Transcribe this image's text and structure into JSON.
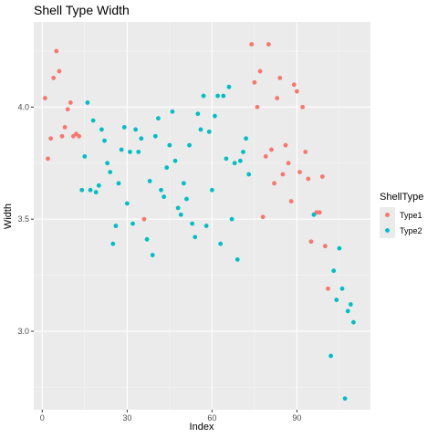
{
  "chart_data": {
    "type": "scatter",
    "title": "Shell Type Width",
    "xlabel": "Index",
    "ylabel": "Width",
    "xlim": [
      -3,
      116
    ],
    "ylim": [
      2.65,
      4.38
    ],
    "x_ticks": [
      0,
      30,
      60,
      90
    ],
    "y_ticks": [
      3.0,
      3.5,
      4.0
    ],
    "x_tick_labels": [
      "0",
      "30",
      "60",
      "90"
    ],
    "y_tick_labels": [
      "3.0",
      "3.5",
      "4.0"
    ],
    "grid": true,
    "legend_title": "ShellType",
    "legend_position": "right",
    "series": [
      {
        "name": "Type1",
        "color": "#f8766d",
        "points": [
          [
            1,
            4.04
          ],
          [
            2,
            3.77
          ],
          [
            3,
            3.86
          ],
          [
            4,
            4.13
          ],
          [
            5,
            4.25
          ],
          [
            6,
            4.16
          ],
          [
            7,
            3.87
          ],
          [
            8,
            3.91
          ],
          [
            9,
            3.99
          ],
          [
            10,
            4.02
          ],
          [
            11,
            3.87
          ],
          [
            12,
            3.88
          ],
          [
            13,
            3.87
          ],
          [
            36,
            3.5
          ],
          [
            74,
            4.28
          ],
          [
            75,
            4.11
          ],
          [
            76,
            4.0
          ],
          [
            77,
            4.16
          ],
          [
            78,
            3.51
          ],
          [
            79,
            3.78
          ],
          [
            80,
            4.28
          ],
          [
            81,
            3.81
          ],
          [
            82,
            3.66
          ],
          [
            83,
            4.04
          ],
          [
            84,
            4.13
          ],
          [
            85,
            3.7
          ],
          [
            86,
            3.83
          ],
          [
            87,
            3.75
          ],
          [
            88,
            3.58
          ],
          [
            89,
            4.1
          ],
          [
            90,
            4.07
          ],
          [
            91,
            3.71
          ],
          [
            92,
            4.0
          ],
          [
            93,
            3.8
          ],
          [
            94,
            3.68
          ],
          [
            95,
            3.4
          ],
          [
            96,
            3.52
          ],
          [
            97,
            3.53
          ],
          [
            98,
            3.53
          ],
          [
            99,
            3.69
          ],
          [
            100,
            3.38
          ],
          [
            101,
            3.19
          ]
        ]
      },
      {
        "name": "Type2",
        "color": "#00bfc4",
        "points": [
          [
            14,
            3.63
          ],
          [
            15,
            3.78
          ],
          [
            16,
            4.02
          ],
          [
            17,
            3.63
          ],
          [
            18,
            3.94
          ],
          [
            19,
            3.62
          ],
          [
            20,
            3.65
          ],
          [
            21,
            3.9
          ],
          [
            22,
            3.85
          ],
          [
            23,
            3.75
          ],
          [
            24,
            3.71
          ],
          [
            25,
            3.39
          ],
          [
            26,
            3.47
          ],
          [
            27,
            3.66
          ],
          [
            28,
            3.81
          ],
          [
            29,
            3.91
          ],
          [
            30,
            3.57
          ],
          [
            31,
            3.8
          ],
          [
            32,
            3.48
          ],
          [
            33,
            3.9
          ],
          [
            34,
            3.8
          ],
          [
            35,
            3.86
          ],
          [
            37,
            3.41
          ],
          [
            38,
            3.67
          ],
          [
            39,
            3.34
          ],
          [
            40,
            3.87
          ],
          [
            41,
            3.95
          ],
          [
            42,
            3.63
          ],
          [
            43,
            3.6
          ],
          [
            44,
            3.73
          ],
          [
            45,
            3.83
          ],
          [
            46,
            3.98
          ],
          [
            47,
            3.76
          ],
          [
            48,
            3.55
          ],
          [
            49,
            3.52
          ],
          [
            50,
            3.66
          ],
          [
            51,
            3.59
          ],
          [
            52,
            3.83
          ],
          [
            53,
            3.48
          ],
          [
            54,
            3.42
          ],
          [
            55,
            3.97
          ],
          [
            56,
            3.9
          ],
          [
            57,
            4.05
          ],
          [
            58,
            3.47
          ],
          [
            59,
            3.89
          ],
          [
            60,
            3.63
          ],
          [
            61,
            3.96
          ],
          [
            62,
            4.05
          ],
          [
            63,
            3.39
          ],
          [
            64,
            4.05
          ],
          [
            65,
            3.77
          ],
          [
            66,
            4.09
          ],
          [
            67,
            3.5
          ],
          [
            68,
            3.75
          ],
          [
            69,
            3.32
          ],
          [
            70,
            3.76
          ],
          [
            71,
            3.8
          ],
          [
            72,
            3.86
          ],
          [
            73,
            3.7
          ],
          [
            96,
            3.52
          ],
          [
            102,
            2.89
          ],
          [
            103,
            3.27
          ],
          [
            104,
            3.14
          ],
          [
            105,
            3.37
          ],
          [
            106,
            3.19
          ],
          [
            107,
            2.7
          ],
          [
            108,
            3.09
          ],
          [
            109,
            3.12
          ],
          [
            110,
            3.04
          ]
        ]
      }
    ]
  }
}
